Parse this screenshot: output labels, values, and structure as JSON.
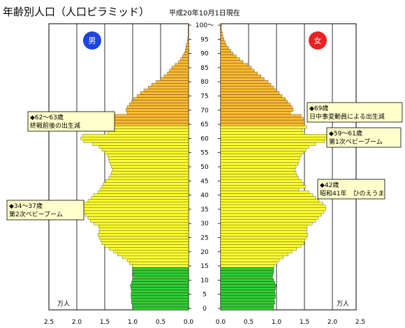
{
  "title": "年齢別人口（人口ピラミッド）",
  "subtitle": "平成20年10月1日現在",
  "male_label": "男",
  "female_label": "女",
  "unit_label": "万人",
  "colors": {
    "young": "#33cc33",
    "working": "#ffff33",
    "old": "#ffbb33",
    "male_circle": "#1e44e0",
    "female_circle": "#e62222",
    "note_bg": "#ffffcc"
  },
  "annotations": [
    {
      "side": "male",
      "lines": [
        "◆62～63歳",
        "終戦前後の出生減"
      ]
    },
    {
      "side": "male",
      "lines": [
        "◆34～37歳",
        "第2次ベビーブーム"
      ]
    },
    {
      "side": "female",
      "lines": [
        "◆69歳",
        "日中事変動員による出生減"
      ]
    },
    {
      "side": "female",
      "lines": [
        "◆59～61歳",
        "第1次ベビーブーム"
      ]
    },
    {
      "side": "female",
      "lines": [
        "◆42歳",
        "昭和41年　ひのえうま"
      ]
    }
  ],
  "chart_data": {
    "type": "bar",
    "title": "年齢別人口（人口ピラミッド）",
    "xlabel": "万人",
    "xlim": [
      0,
      2.5
    ],
    "x_ticks": [
      "2.5",
      "2.0",
      "1.5",
      "1.0",
      "0.5",
      "0.0"
    ],
    "y_ticks": [
      "0",
      "5",
      "10",
      "15",
      "20",
      "25",
      "30",
      "35",
      "40",
      "45",
      "50",
      "55",
      "60",
      "65",
      "70",
      "75",
      "80",
      "85",
      "90",
      "95",
      "100～"
    ],
    "age_groups": [
      {
        "name": "0-14",
        "color": "#33cc33"
      },
      {
        "name": "15-64",
        "color": "#ffff33"
      },
      {
        "name": "65+",
        "color": "#ffbb33"
      }
    ],
    "ages": [
      0,
      1,
      2,
      3,
      4,
      5,
      6,
      7,
      8,
      9,
      10,
      11,
      12,
      13,
      14,
      15,
      16,
      17,
      18,
      19,
      20,
      21,
      22,
      23,
      24,
      25,
      26,
      27,
      28,
      29,
      30,
      31,
      32,
      33,
      34,
      35,
      36,
      37,
      38,
      39,
      40,
      41,
      42,
      43,
      44,
      45,
      46,
      47,
      48,
      49,
      50,
      51,
      52,
      53,
      54,
      55,
      56,
      57,
      58,
      59,
      60,
      61,
      62,
      63,
      64,
      65,
      66,
      67,
      68,
      69,
      70,
      71,
      72,
      73,
      74,
      75,
      76,
      77,
      78,
      79,
      80,
      81,
      82,
      83,
      84,
      85,
      86,
      87,
      88,
      89,
      90,
      91,
      92,
      93,
      94,
      95,
      96,
      97,
      98,
      99,
      100
    ],
    "series": [
      {
        "name": "男",
        "values": [
          1.0,
          1.0,
          1.02,
          1.02,
          1.03,
          1.03,
          1.02,
          1.03,
          1.04,
          1.02,
          1.0,
          0.98,
          0.99,
          1.0,
          1.0,
          1.01,
          1.06,
          1.1,
          1.18,
          1.27,
          1.34,
          1.42,
          1.5,
          1.55,
          1.57,
          1.6,
          1.62,
          1.6,
          1.6,
          1.61,
          1.7,
          1.76,
          1.8,
          1.85,
          1.9,
          1.92,
          1.92,
          1.88,
          1.8,
          1.74,
          1.7,
          1.62,
          1.58,
          1.55,
          1.52,
          1.48,
          1.43,
          1.4,
          1.38,
          1.36,
          1.38,
          1.4,
          1.42,
          1.43,
          1.45,
          1.5,
          1.55,
          1.6,
          1.72,
          1.88,
          1.93,
          1.9,
          1.45,
          1.42,
          1.5,
          1.45,
          1.42,
          1.38,
          1.32,
          1.1,
          1.12,
          1.1,
          1.06,
          1.02,
          0.98,
          0.92,
          0.86,
          0.8,
          0.72,
          0.66,
          0.58,
          0.5,
          0.44,
          0.38,
          0.34,
          0.3,
          0.24,
          0.18,
          0.14,
          0.11,
          0.08,
          0.06,
          0.05,
          0.04,
          0.02,
          0.02,
          0.01,
          0.01,
          0.01,
          0.0,
          0.01
        ]
      },
      {
        "name": "女",
        "values": [
          0.95,
          0.95,
          0.97,
          0.96,
          0.98,
          0.98,
          0.97,
          0.98,
          0.99,
          0.97,
          0.95,
          0.93,
          0.94,
          0.95,
          0.95,
          0.96,
          1.01,
          1.05,
          1.12,
          1.21,
          1.28,
          1.36,
          1.44,
          1.49,
          1.51,
          1.54,
          1.56,
          1.54,
          1.54,
          1.55,
          1.64,
          1.7,
          1.75,
          1.8,
          1.85,
          1.88,
          1.88,
          1.83,
          1.76,
          1.7,
          1.65,
          1.58,
          1.4,
          1.52,
          1.48,
          1.45,
          1.4,
          1.37,
          1.35,
          1.33,
          1.35,
          1.38,
          1.4,
          1.42,
          1.44,
          1.48,
          1.53,
          1.58,
          1.7,
          1.86,
          1.92,
          1.9,
          1.5,
          1.46,
          1.54,
          1.5,
          1.5,
          1.48,
          1.44,
          1.25,
          1.3,
          1.28,
          1.25,
          1.2,
          1.16,
          1.1,
          1.05,
          1.0,
          0.95,
          0.9,
          0.85,
          0.78,
          0.72,
          0.66,
          0.6,
          0.55,
          0.48,
          0.4,
          0.34,
          0.28,
          0.22,
          0.18,
          0.14,
          0.1,
          0.08,
          0.06,
          0.04,
          0.03,
          0.02,
          0.01,
          0.02
        ]
      }
    ],
    "grid": true,
    "legend": "none"
  }
}
